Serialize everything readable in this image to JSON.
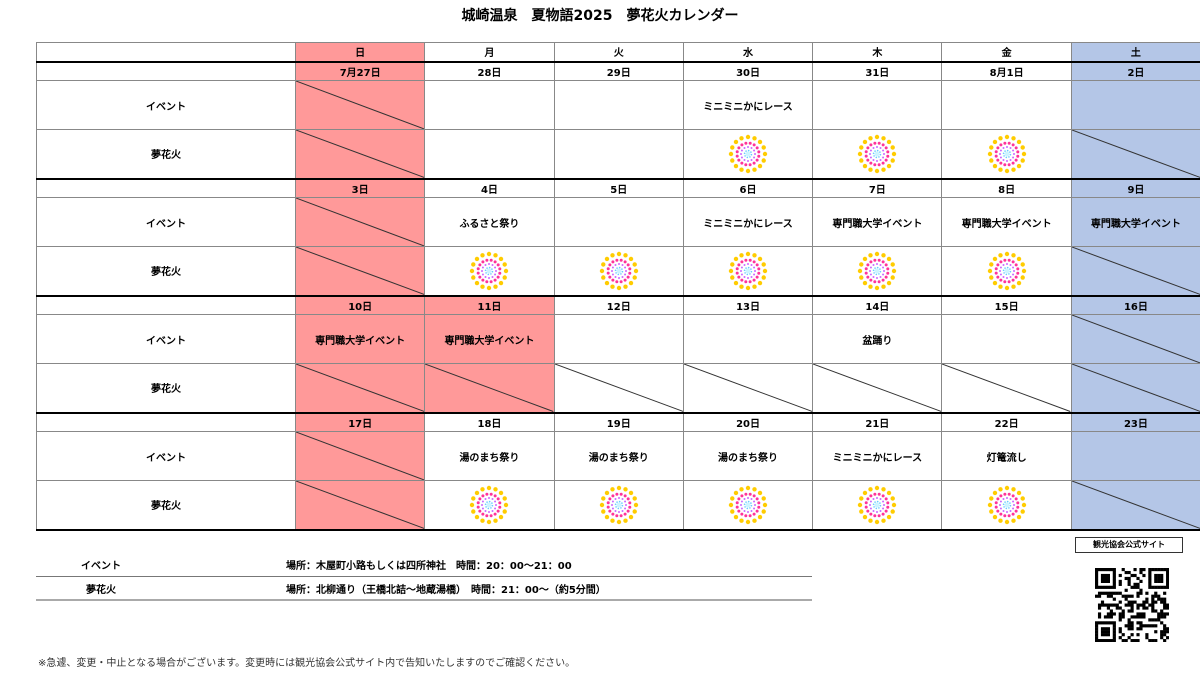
{
  "title": "城崎温泉　夏物語2025　夢花火カレンダー",
  "weekdays": [
    "日",
    "月",
    "火",
    "水",
    "木",
    "金",
    "土"
  ],
  "row_labels": {
    "event": "イベント",
    "fireworks": "夢花火"
  },
  "colors": {
    "sunday_holiday": "#ff9999",
    "saturday": "#b4c6e7",
    "firework_outer": "#ffcc00",
    "firework_mid": "#ff3399",
    "firework_inner": "#cc66ff"
  },
  "weeks": [
    {
      "days": [
        {
          "date": "7月27日",
          "bg": "red",
          "event": "",
          "event_slash": true,
          "fire": false,
          "fire_slash": true
        },
        {
          "date": "28日",
          "bg": "",
          "event": "",
          "event_slash": false,
          "fire": false,
          "fire_slash": false
        },
        {
          "date": "29日",
          "bg": "",
          "event": "",
          "event_slash": false,
          "fire": false,
          "fire_slash": false
        },
        {
          "date": "30日",
          "bg": "",
          "event": "ミニミニかにレース",
          "event_slash": false,
          "fire": true,
          "fire_slash": false
        },
        {
          "date": "31日",
          "bg": "",
          "event": "",
          "event_slash": false,
          "fire": true,
          "fire_slash": false
        },
        {
          "date": "8月1日",
          "bg": "",
          "event": "",
          "event_slash": false,
          "fire": true,
          "fire_slash": false
        },
        {
          "date": "2日",
          "bg": "blue",
          "event": "",
          "event_slash": false,
          "fire": false,
          "fire_slash": true
        }
      ]
    },
    {
      "days": [
        {
          "date": "3日",
          "bg": "red",
          "event": "",
          "event_slash": true,
          "fire": false,
          "fire_slash": true
        },
        {
          "date": "4日",
          "bg": "",
          "event": "ふるさと祭り",
          "event_slash": false,
          "fire": true,
          "fire_slash": false
        },
        {
          "date": "5日",
          "bg": "",
          "event": "",
          "event_slash": false,
          "fire": true,
          "fire_slash": false
        },
        {
          "date": "6日",
          "bg": "",
          "event": "ミニミニかにレース",
          "event_slash": false,
          "fire": true,
          "fire_slash": false
        },
        {
          "date": "7日",
          "bg": "",
          "event": "専門職大学イベント",
          "event_slash": false,
          "fire": true,
          "fire_slash": false
        },
        {
          "date": "8日",
          "bg": "",
          "event": "専門職大学イベント",
          "event_slash": false,
          "fire": true,
          "fire_slash": false
        },
        {
          "date": "9日",
          "bg": "blue",
          "event": "専門職大学イベント",
          "event_slash": false,
          "fire": false,
          "fire_slash": true
        }
      ]
    },
    {
      "days": [
        {
          "date": "10日",
          "bg": "red",
          "event": "専門職大学イベント",
          "event_slash": false,
          "fire": false,
          "fire_slash": true
        },
        {
          "date": "11日",
          "bg": "red",
          "event": "専門職大学イベント",
          "event_slash": false,
          "fire": false,
          "fire_slash": true
        },
        {
          "date": "12日",
          "bg": "",
          "event": "",
          "event_slash": false,
          "fire": false,
          "fire_slash": true
        },
        {
          "date": "13日",
          "bg": "",
          "event": "",
          "event_slash": false,
          "fire": false,
          "fire_slash": true
        },
        {
          "date": "14日",
          "bg": "",
          "event": "盆踊り",
          "event_slash": false,
          "fire": false,
          "fire_slash": true
        },
        {
          "date": "15日",
          "bg": "",
          "event": "",
          "event_slash": false,
          "fire": false,
          "fire_slash": true
        },
        {
          "date": "16日",
          "bg": "blue",
          "event": "",
          "event_slash": true,
          "fire": false,
          "fire_slash": true
        }
      ]
    },
    {
      "days": [
        {
          "date": "17日",
          "bg": "red",
          "event": "",
          "event_slash": true,
          "fire": false,
          "fire_slash": true
        },
        {
          "date": "18日",
          "bg": "",
          "event": "湯のまち祭り",
          "event_slash": false,
          "fire": true,
          "fire_slash": false
        },
        {
          "date": "19日",
          "bg": "",
          "event": "湯のまち祭り",
          "event_slash": false,
          "fire": true,
          "fire_slash": false
        },
        {
          "date": "20日",
          "bg": "",
          "event": "湯のまち祭り",
          "event_slash": false,
          "fire": true,
          "fire_slash": false
        },
        {
          "date": "21日",
          "bg": "",
          "event": "ミニミニかにレース",
          "event_slash": false,
          "fire": true,
          "fire_slash": false
        },
        {
          "date": "22日",
          "bg": "",
          "event": "灯篭流し",
          "event_slash": false,
          "fire": true,
          "fire_slash": false
        },
        {
          "date": "23日",
          "bg": "blue",
          "event": "",
          "event_slash": false,
          "fire": false,
          "fire_slash": true
        }
      ]
    }
  ],
  "legend": [
    {
      "label": "イベント",
      "text": "場所：木屋町小路もしくは四所神社　時間：20：00～21：00"
    },
    {
      "label": "夢花火",
      "text": "場所：北柳通り（王橋北詰～地蔵湯橋）　時間：21：00～（約5分間）"
    }
  ],
  "site_button": "観光協会公式サイト",
  "note": "※急遽、変更・中止となる場合がございます。変更時には観光協会公式サイト内で告知いたしますのでご確認ください。"
}
